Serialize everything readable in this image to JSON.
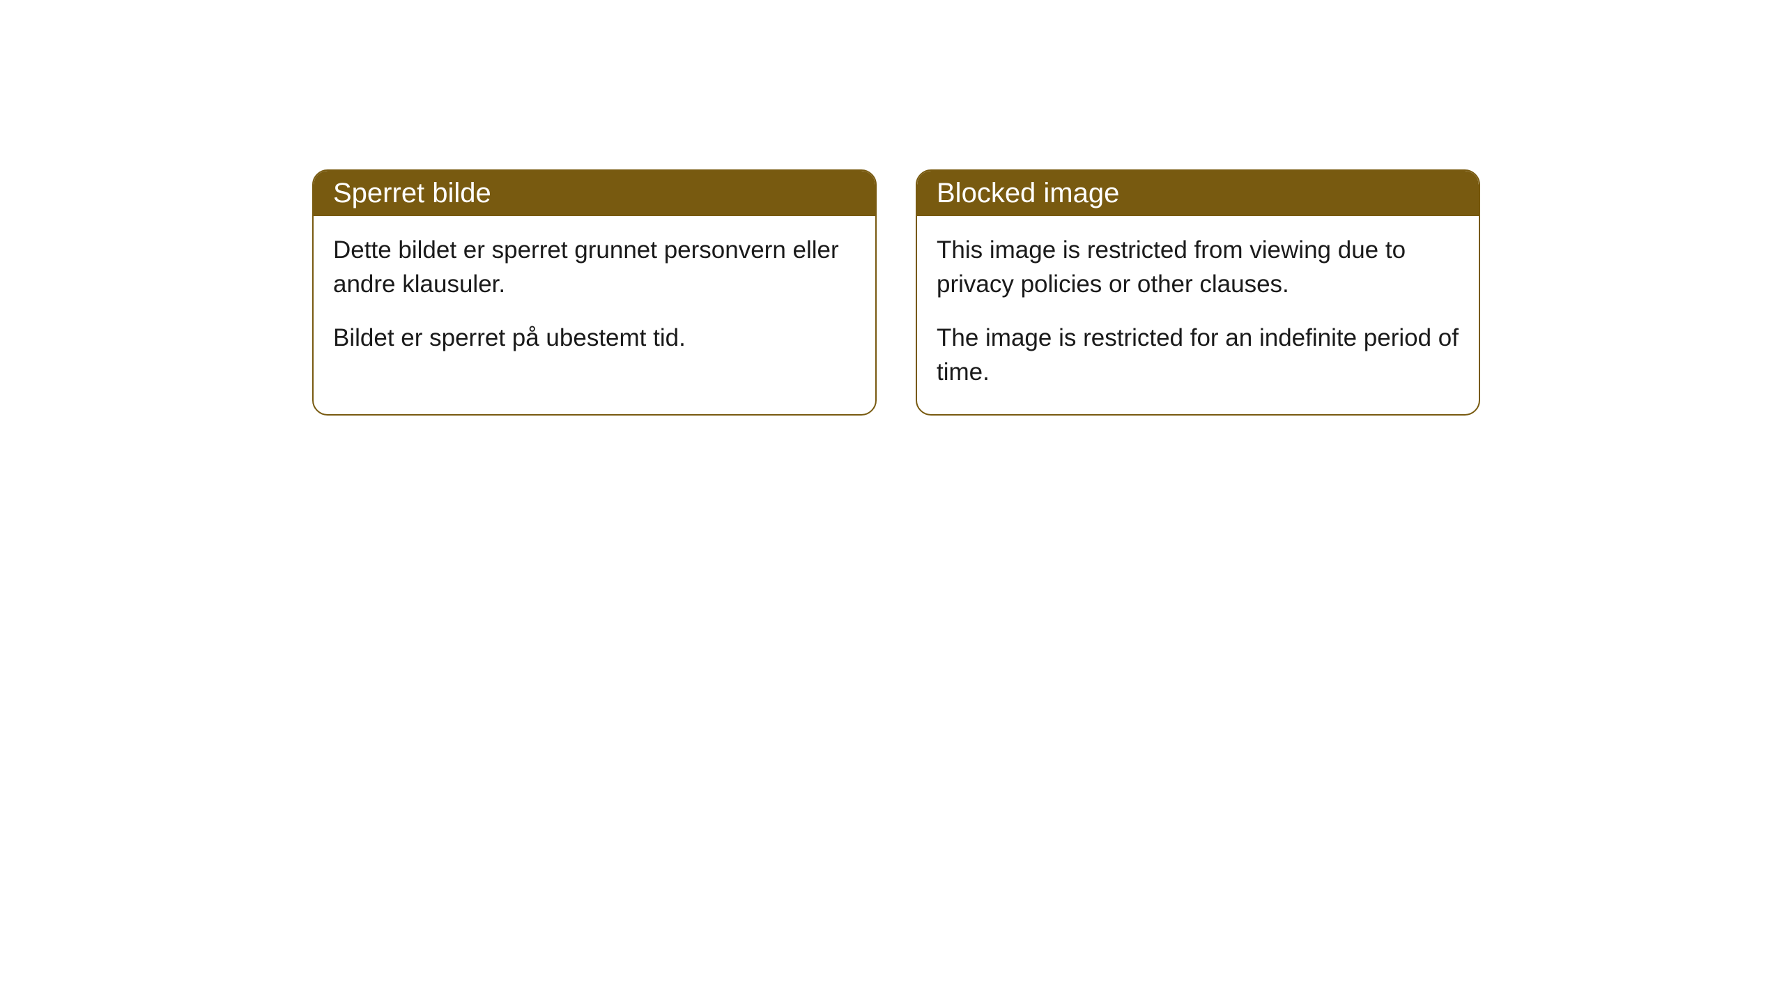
{
  "cards": [
    {
      "title": "Sperret bilde",
      "paragraph1": "Dette bildet er sperret grunnet personvern eller andre klausuler.",
      "paragraph2": "Bildet er sperret på ubestemt tid."
    },
    {
      "title": "Blocked image",
      "paragraph1": "This image is restricted from viewing due to privacy policies or other clauses.",
      "paragraph2": "The image is restricted for an indefinite period of time."
    }
  ],
  "styling": {
    "header_bg_color": "#785a10",
    "header_text_color": "#ffffff",
    "border_color": "#785a10",
    "body_bg_color": "#ffffff",
    "body_text_color": "#1a1a1a",
    "border_radius": 22,
    "header_font_size": 40,
    "body_font_size": 35
  }
}
